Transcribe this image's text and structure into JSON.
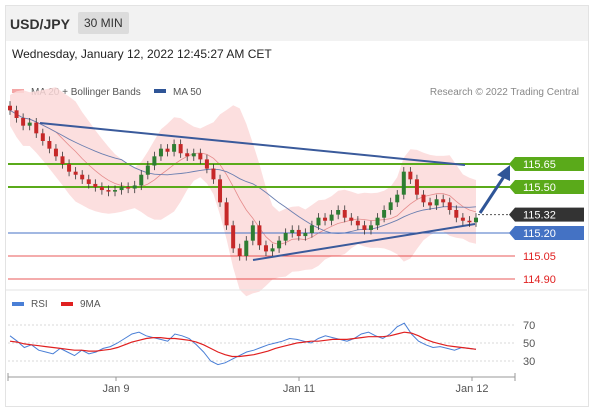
{
  "header": {
    "symbol": "USD/JPY",
    "timeframe": "30 MIN"
  },
  "timestamp": "Wednesday, January 12, 2022 12:45:27 AM CET",
  "legend": {
    "ma20_bb": "MA 20 + Bollinger Bands",
    "ma50": "MA 50",
    "credit": "Research © 2022 Trading Central"
  },
  "rsi_legend": {
    "rsi": "RSI",
    "ma9": "9MA"
  },
  "colors": {
    "bollinger": "#f4a6a6",
    "ma50": "#2f5597",
    "resistance": "#5aaa1a",
    "support": "#4472c4",
    "target": "#e02020",
    "price": "#333333",
    "rsi": "#4a7fd6",
    "rsi_ma": "#e02020",
    "up": "#2e7d32",
    "down": "#c62828"
  },
  "chart_data": [
    {
      "type": "candlestick",
      "title": "USD/JPY",
      "ylim": [
        114.8,
        116.0
      ],
      "x_ticks": [
        "Jan 9",
        "Jan 11",
        "Jan 12"
      ],
      "close": [
        116.0,
        115.95,
        115.9,
        115.92,
        115.85,
        115.8,
        115.75,
        115.7,
        115.65,
        115.6,
        115.58,
        115.55,
        115.52,
        115.5,
        115.48,
        115.47,
        115.48,
        115.5,
        115.49,
        115.51,
        115.58,
        115.64,
        115.7,
        115.75,
        115.73,
        115.78,
        115.72,
        115.7,
        115.72,
        115.68,
        115.62,
        115.55,
        115.4,
        115.25,
        115.1,
        115.05,
        115.15,
        115.25,
        115.12,
        115.08,
        115.1,
        115.15,
        115.2,
        115.22,
        115.18,
        115.2,
        115.25,
        115.3,
        115.28,
        115.32,
        115.35,
        115.3,
        115.28,
        115.25,
        115.22,
        115.25,
        115.3,
        115.35,
        115.4,
        115.45,
        115.6,
        115.55,
        115.45,
        115.4,
        115.38,
        115.42,
        115.4,
        115.35,
        115.3,
        115.28,
        115.27,
        115.3
      ],
      "levels": [
        {
          "label": "115.65",
          "value": 115.65,
          "kind": "resistance"
        },
        {
          "label": "115.50",
          "value": 115.5,
          "kind": "resistance"
        },
        {
          "label": "115.32",
          "value": 115.32,
          "kind": "price"
        },
        {
          "label": "115.20",
          "value": 115.2,
          "kind": "support"
        },
        {
          "label": "115.05",
          "value": 115.05,
          "kind": "target"
        },
        {
          "label": "114.90",
          "value": 114.9,
          "kind": "target"
        }
      ]
    },
    {
      "type": "line",
      "title": "RSI",
      "ylim": [
        20,
        80
      ],
      "y_ticks": [
        "70",
        "50",
        "30"
      ],
      "series": [
        {
          "name": "RSI",
          "values": [
            58,
            52,
            45,
            48,
            42,
            40,
            38,
            44,
            40,
            36,
            42,
            38,
            40,
            44,
            46,
            50,
            55,
            60,
            62,
            58,
            56,
            54,
            52,
            60,
            58,
            55,
            48,
            40,
            30,
            26,
            28,
            32,
            36,
            40,
            42,
            45,
            48,
            50,
            52,
            55,
            54,
            52,
            50,
            55,
            58,
            56,
            54,
            52,
            55,
            60,
            62,
            58,
            55,
            60,
            68,
            72,
            60,
            52,
            48,
            45,
            46,
            44,
            42,
            45,
            44,
            43
          ]
        },
        {
          "name": "9MA",
          "values": [
            52,
            51,
            49,
            48,
            47,
            46,
            45,
            44,
            43,
            42,
            42,
            41,
            41,
            42,
            43,
            45,
            48,
            51,
            53,
            55,
            56,
            56,
            55,
            55,
            54,
            53,
            51,
            48,
            44,
            40,
            37,
            35,
            35,
            36,
            37,
            39,
            41,
            44,
            46,
            48,
            50,
            51,
            52,
            52,
            53,
            54,
            54,
            54,
            55,
            56,
            57,
            57,
            57,
            58,
            60,
            62,
            61,
            58,
            54,
            51,
            49,
            47,
            46,
            45,
            44,
            43
          ]
        }
      ]
    }
  ]
}
